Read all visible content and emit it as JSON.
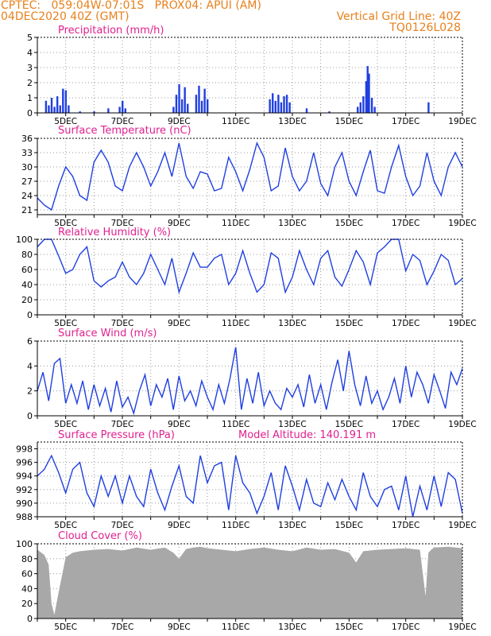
{
  "header": {
    "line1": "CPTEC:   059:04W-07:01S   PROX04: APUI (AM)",
    "line2": "04DEC2020 40Z (GMT)",
    "right1": "Vertical Grid Line: 40Z",
    "right2": "TQ0126L028"
  },
  "x_ticks": [
    "5DEC",
    "7DEC",
    "9DEC",
    "11DEC",
    "13DEC",
    "15DEC",
    "17DEC",
    "19DEC"
  ],
  "colors": {
    "line": "#1f3fe0",
    "title": "#e0208f",
    "header": "#e8801c",
    "cloud": "#a8a8a8",
    "axis": "#000000"
  },
  "chart_data": [
    {
      "type": "bar",
      "title": "Precipitation (mm/h)",
      "ylim": [
        0,
        5
      ],
      "yticks": [
        "0",
        "1",
        "2",
        "3",
        "4",
        "5"
      ],
      "bars": [
        [
          4.3,
          0.8
        ],
        [
          4.4,
          0.5
        ],
        [
          4.5,
          1.0
        ],
        [
          4.6,
          0.4
        ],
        [
          4.7,
          1.1
        ],
        [
          4.8,
          0.5
        ],
        [
          4.9,
          1.6
        ],
        [
          5.0,
          1.5
        ],
        [
          5.1,
          0.5
        ],
        [
          5.5,
          0.1
        ],
        [
          6.0,
          0.1
        ],
        [
          6.5,
          0.3
        ],
        [
          6.9,
          0.4
        ],
        [
          7.0,
          0.8
        ],
        [
          7.1,
          0.3
        ],
        [
          8.8,
          0.4
        ],
        [
          8.9,
          1.2
        ],
        [
          9.0,
          1.9
        ],
        [
          9.1,
          0.9
        ],
        [
          9.2,
          1.7
        ],
        [
          9.3,
          0.6
        ],
        [
          9.6,
          1.2
        ],
        [
          9.7,
          1.8
        ],
        [
          9.8,
          0.8
        ],
        [
          9.9,
          1.6
        ],
        [
          10.0,
          0.9
        ],
        [
          12.2,
          0.9
        ],
        [
          12.3,
          1.3
        ],
        [
          12.4,
          0.8
        ],
        [
          12.5,
          1.2
        ],
        [
          12.6,
          0.7
        ],
        [
          12.7,
          1.1
        ],
        [
          12.8,
          1.2
        ],
        [
          12.9,
          0.7
        ],
        [
          13.5,
          0.3
        ],
        [
          14.3,
          0.1
        ],
        [
          15.3,
          0.4
        ],
        [
          15.4,
          0.7
        ],
        [
          15.5,
          1.1
        ],
        [
          15.6,
          2.1
        ],
        [
          15.65,
          3.1
        ],
        [
          15.7,
          2.6
        ],
        [
          15.8,
          1.0
        ],
        [
          15.9,
          0.4
        ],
        [
          17.8,
          0.7
        ]
      ]
    },
    {
      "type": "line",
      "title": "Surface Temperature (nC)",
      "ylim": [
        20,
        36
      ],
      "yticks": [
        "21",
        "24",
        "27",
        "30",
        "33",
        "36"
      ],
      "x": [
        4.0,
        4.25,
        4.5,
        4.75,
        5.0,
        5.25,
        5.5,
        5.75,
        6.0,
        6.25,
        6.5,
        6.75,
        7.0,
        7.25,
        7.5,
        7.75,
        8.0,
        8.25,
        8.5,
        8.75,
        9.0,
        9.25,
        9.5,
        9.75,
        10.0,
        10.25,
        10.5,
        10.75,
        11.0,
        11.25,
        11.5,
        11.75,
        12.0,
        12.25,
        12.5,
        12.75,
        13.0,
        13.25,
        13.5,
        13.75,
        14.0,
        14.25,
        14.5,
        14.75,
        15.0,
        15.25,
        15.5,
        15.75,
        16.0,
        16.25,
        16.5,
        16.75,
        17.0,
        17.25,
        17.5,
        17.75,
        18.0,
        18.25,
        18.5,
        18.75,
        19.0
      ],
      "y": [
        23.5,
        22.0,
        21.0,
        26.0,
        30.0,
        28.0,
        24.0,
        23.0,
        31.0,
        33.5,
        31.0,
        26.0,
        25.0,
        30.0,
        33.0,
        30.0,
        26.0,
        29.0,
        33.0,
        28.0,
        35.0,
        28.0,
        25.5,
        29.0,
        28.5,
        25.0,
        25.5,
        32.0,
        29.0,
        25.0,
        29.5,
        35.0,
        32.0,
        25.0,
        26.0,
        34.0,
        28.0,
        25.0,
        27.0,
        33.0,
        26.5,
        24.0,
        30.0,
        33.0,
        27.0,
        24.0,
        29.0,
        33.5,
        25.0,
        24.5,
        30.0,
        34.5,
        28.0,
        24.0,
        26.0,
        33.0,
        27.0,
        24.0,
        30.0,
        33.0,
        30.0
      ]
    },
    {
      "type": "line",
      "title": "Relative Humidity (%)",
      "ylim": [
        0,
        100
      ],
      "yticks": [
        "0",
        "20",
        "40",
        "60",
        "80",
        "100"
      ],
      "x": [
        4.0,
        4.25,
        4.5,
        4.75,
        5.0,
        5.25,
        5.5,
        5.75,
        6.0,
        6.25,
        6.5,
        6.75,
        7.0,
        7.25,
        7.5,
        7.75,
        8.0,
        8.25,
        8.5,
        8.75,
        9.0,
        9.25,
        9.5,
        9.75,
        10.0,
        10.25,
        10.5,
        10.75,
        11.0,
        11.25,
        11.5,
        11.75,
        12.0,
        12.25,
        12.5,
        12.75,
        13.0,
        13.25,
        13.5,
        13.75,
        14.0,
        14.25,
        14.5,
        14.75,
        15.0,
        15.25,
        15.5,
        15.75,
        16.0,
        16.25,
        16.5,
        16.75,
        17.0,
        17.25,
        17.5,
        17.75,
        18.0,
        18.25,
        18.5,
        18.75,
        19.0
      ],
      "y": [
        90,
        100,
        100,
        78,
        55,
        60,
        80,
        90,
        45,
        37,
        45,
        50,
        70,
        50,
        40,
        55,
        80,
        60,
        40,
        75,
        30,
        55,
        82,
        63,
        63,
        75,
        80,
        40,
        55,
        85,
        55,
        30,
        40,
        82,
        75,
        30,
        50,
        85,
        60,
        40,
        75,
        85,
        50,
        38,
        60,
        85,
        70,
        40,
        82,
        90,
        100,
        100,
        58,
        80,
        72,
        40,
        58,
        80,
        72,
        40,
        48
      ]
    },
    {
      "type": "line",
      "title": "Surface Wind (m/s)",
      "ylim": [
        0,
        6
      ],
      "yticks": [
        "0",
        "2",
        "4",
        "6"
      ],
      "x": [
        4.0,
        4.2,
        4.4,
        4.6,
        4.8,
        5.0,
        5.2,
        5.4,
        5.6,
        5.8,
        6.0,
        6.2,
        6.4,
        6.6,
        6.8,
        7.0,
        7.2,
        7.4,
        7.6,
        7.8,
        8.0,
        8.2,
        8.4,
        8.6,
        8.8,
        9.0,
        9.2,
        9.4,
        9.6,
        9.8,
        10.0,
        10.2,
        10.4,
        10.6,
        10.8,
        11.0,
        11.2,
        11.4,
        11.6,
        11.8,
        12.0,
        12.2,
        12.4,
        12.6,
        12.8,
        13.0,
        13.2,
        13.4,
        13.6,
        13.8,
        14.0,
        14.2,
        14.4,
        14.6,
        14.8,
        15.0,
        15.2,
        15.4,
        15.6,
        15.8,
        16.0,
        16.2,
        16.4,
        16.6,
        16.8,
        17.0,
        17.2,
        17.4,
        17.6,
        17.8,
        18.0,
        18.2,
        18.4,
        18.6,
        18.8,
        19.0
      ],
      "y": [
        2.0,
        3.5,
        1.2,
        4.2,
        4.6,
        1.0,
        2.5,
        1.0,
        2.8,
        0.5,
        2.5,
        0.8,
        2.2,
        0.3,
        2.8,
        0.7,
        1.5,
        0.2,
        2.0,
        3.3,
        0.8,
        2.5,
        1.5,
        3.0,
        0.5,
        3.2,
        1.2,
        2.0,
        0.8,
        2.8,
        1.5,
        0.5,
        2.5,
        1.0,
        3.0,
        5.5,
        0.5,
        3.0,
        1.0,
        3.5,
        0.8,
        2.0,
        1.0,
        0.5,
        2.2,
        1.5,
        2.5,
        0.7,
        3.3,
        1.0,
        2.5,
        0.5,
        2.7,
        4.5,
        2.0,
        5.2,
        2.5,
        0.8,
        3.2,
        1.0,
        2.0,
        0.5,
        1.5,
        3.0,
        1.0,
        4.0,
        1.5,
        3.5,
        2.5,
        1.0,
        3.3,
        2.0,
        0.6,
        3.5,
        2.5,
        3.8
      ]
    },
    {
      "type": "line",
      "title": "Surface Pressure (hPa)",
      "annotation": "Model Altitude: 140.191 m",
      "ylim": [
        988,
        999
      ],
      "yticks": [
        "988",
        "990",
        "992",
        "994",
        "996",
        "998"
      ],
      "x": [
        4.0,
        4.25,
        4.5,
        4.75,
        5.0,
        5.25,
        5.5,
        5.75,
        6.0,
        6.25,
        6.5,
        6.75,
        7.0,
        7.25,
        7.5,
        7.75,
        8.0,
        8.25,
        8.5,
        8.75,
        9.0,
        9.25,
        9.5,
        9.75,
        10.0,
        10.25,
        10.5,
        10.75,
        11.0,
        11.25,
        11.5,
        11.75,
        12.0,
        12.25,
        12.5,
        12.75,
        13.0,
        13.25,
        13.5,
        13.75,
        14.0,
        14.25,
        14.5,
        14.75,
        15.0,
        15.25,
        15.5,
        15.75,
        16.0,
        16.25,
        16.5,
        16.75,
        17.0,
        17.25,
        17.5,
        17.75,
        18.0,
        18.25,
        18.5,
        18.75,
        19.0
      ],
      "y": [
        994.0,
        995.0,
        997.0,
        994.5,
        991.5,
        995.0,
        996.0,
        991.5,
        989.5,
        994.0,
        991.0,
        994.0,
        990.0,
        994.0,
        991.0,
        989.5,
        995.0,
        991.5,
        989.0,
        992.5,
        995.5,
        991.0,
        990.0,
        997.0,
        993.0,
        995.5,
        996.0,
        989.0,
        997.0,
        993.0,
        991.5,
        988.5,
        991.0,
        994.5,
        989.0,
        995.5,
        992.5,
        989.0,
        993.5,
        990.0,
        989.5,
        993.0,
        990.5,
        993.5,
        991.0,
        989.0,
        994.5,
        991.0,
        989.5,
        992.0,
        992.5,
        989.0,
        994.0,
        988.0,
        992.5,
        989.0,
        994.0,
        989.5,
        994.5,
        993.5,
        988.5
      ]
    },
    {
      "type": "area",
      "title": "Cloud Cover (%)",
      "ylim": [
        0,
        100
      ],
      "yticks": [
        "0",
        "20",
        "40",
        "60",
        "80",
        "100"
      ],
      "x": [
        4.0,
        4.25,
        4.4,
        4.5,
        4.6,
        4.75,
        5.0,
        5.25,
        5.5,
        6.0,
        6.5,
        7.0,
        7.5,
        8.0,
        8.5,
        8.8,
        9.0,
        9.25,
        9.5,
        9.75,
        10.0,
        10.5,
        11.0,
        11.5,
        12.0,
        12.5,
        13.0,
        13.5,
        14.0,
        14.5,
        15.0,
        15.25,
        15.5,
        16.0,
        16.5,
        17.0,
        17.5,
        17.7,
        17.8,
        17.9,
        18.0,
        18.5,
        19.0
      ],
      "y": [
        92,
        85,
        72,
        20,
        5,
        35,
        82,
        88,
        90,
        92,
        93,
        91,
        95,
        92,
        95,
        88,
        80,
        93,
        95,
        96,
        94,
        92,
        90,
        93,
        95,
        92,
        90,
        95,
        92,
        93,
        88,
        75,
        90,
        92,
        93,
        94,
        92,
        30,
        88,
        92,
        95,
        96,
        94
      ]
    }
  ]
}
